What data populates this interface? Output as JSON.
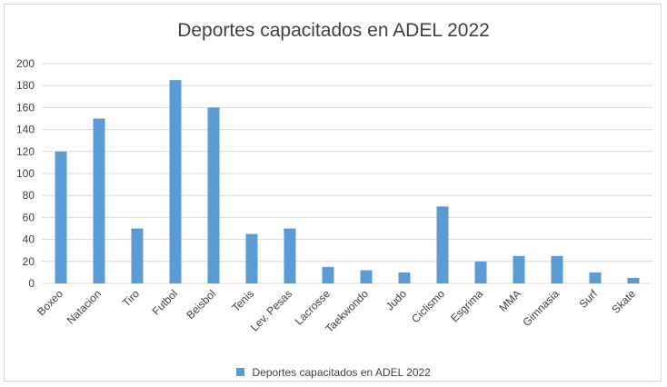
{
  "chart_data": {
    "type": "bar",
    "title": "Deportes capacitados en ADEL 2022",
    "categories": [
      "Boxeo",
      "Natacion",
      "Tiro",
      "Futbol",
      "Beisbol",
      "Tenis",
      "Lev. Pesas",
      "Lacrosse",
      "Taekwondo",
      "Judo",
      "Ciclismo",
      "Esgrima",
      "MMA",
      "Gimnasia",
      "Surf",
      "Skate"
    ],
    "series": [
      {
        "name": "Deportes capacitados en ADEL 2022",
        "values": [
          120,
          150,
          50,
          185,
          160,
          45,
          50,
          15,
          12,
          10,
          70,
          20,
          25,
          25,
          10,
          5
        ],
        "color": "#5b9bd5"
      }
    ],
    "ylim": [
      0,
      200
    ],
    "yticks": [
      0,
      20,
      40,
      60,
      80,
      100,
      120,
      140,
      160,
      180,
      200
    ],
    "grid": true,
    "legend": "bottom"
  }
}
